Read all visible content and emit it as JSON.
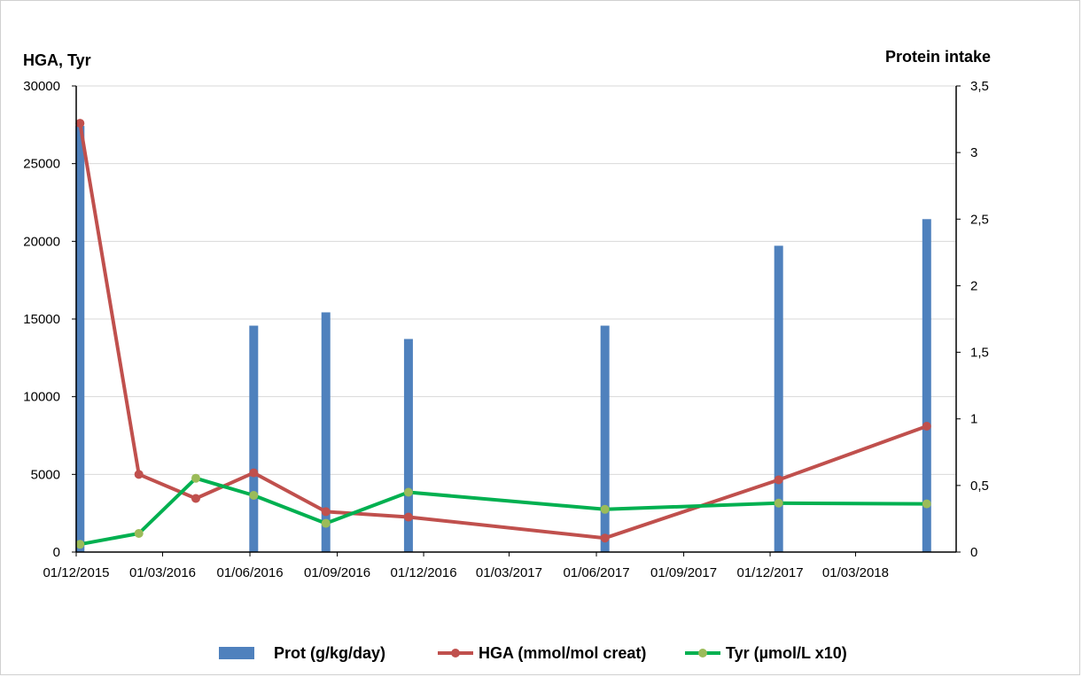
{
  "chart_data": {
    "type": "bar+line",
    "left_axis": {
      "label": "HGA, Tyr",
      "min": 0,
      "max": 30000,
      "ticks": [
        "0",
        "5000",
        "10000",
        "15000",
        "20000",
        "25000",
        "30000"
      ],
      "tick_values": [
        0,
        5000,
        10000,
        15000,
        20000,
        25000,
        30000
      ]
    },
    "right_axis": {
      "label": "Protein intake",
      "min": 0,
      "max": 3.5,
      "ticks": [
        "0",
        "0,5",
        "1",
        "1,5",
        "2",
        "2,5",
        "3",
        "3,5"
      ],
      "tick_values": [
        0,
        0.5,
        1,
        1.5,
        2,
        2.5,
        3,
        3.5
      ]
    },
    "x_axis": {
      "type": "date",
      "min": "2015-12-01",
      "max": "2018-06-15",
      "ticks": [
        "2015-12-01",
        "2016-03-01",
        "2016-06-01",
        "2016-09-01",
        "2016-12-01",
        "2017-03-01",
        "2017-06-01",
        "2017-09-01",
        "2017-12-01",
        "2018-03-01"
      ],
      "tick_labels": [
        "01/12/2015",
        "01/03/2016",
        "01/06/2016",
        "01/09/2016",
        "01/12/2016",
        "01/03/2017",
        "01/06/2017",
        "01/09/2017",
        "01/12/2017",
        "01/03/2018"
      ]
    },
    "grid": "horizontal",
    "legend_position": "bottom",
    "series": [
      {
        "name": "Prot (g/kg/day)",
        "type": "bar",
        "axis": "right",
        "color": "#4f81bd",
        "points": [
          {
            "x": "2015-12-05",
            "y": 3.2
          },
          {
            "x": "2016-06-05",
            "y": 1.7
          },
          {
            "x": "2016-08-20",
            "y": 1.8
          },
          {
            "x": "2016-11-15",
            "y": 1.6
          },
          {
            "x": "2017-06-10",
            "y": 1.7
          },
          {
            "x": "2017-12-10",
            "y": 2.3
          },
          {
            "x": "2018-05-15",
            "y": 2.5
          }
        ]
      },
      {
        "name": "HGA (mmol/mol creat)",
        "type": "line",
        "axis": "left",
        "color": "#c0504d",
        "points": [
          {
            "x": "2015-12-05",
            "y": 27600
          },
          {
            "x": "2016-02-05",
            "y": 5000
          },
          {
            "x": "2016-04-05",
            "y": 3450
          },
          {
            "x": "2016-06-05",
            "y": 5100
          },
          {
            "x": "2016-08-20",
            "y": 2600
          },
          {
            "x": "2016-11-15",
            "y": 2250
          },
          {
            "x": "2017-06-10",
            "y": 900
          },
          {
            "x": "2017-12-10",
            "y": 4650
          },
          {
            "x": "2018-05-15",
            "y": 8100
          }
        ]
      },
      {
        "name": "Tyr (µmol/L x10)",
        "type": "line",
        "axis": "left",
        "color": "#00b050",
        "marker_color": "#9bbb59",
        "points": [
          {
            "x": "2015-12-05",
            "y": 500
          },
          {
            "x": "2016-02-05",
            "y": 1200
          },
          {
            "x": "2016-04-05",
            "y": 4750
          },
          {
            "x": "2016-06-05",
            "y": 3650
          },
          {
            "x": "2016-08-20",
            "y": 1850
          },
          {
            "x": "2016-11-15",
            "y": 3850
          },
          {
            "x": "2017-06-10",
            "y": 2750
          },
          {
            "x": "2017-12-10",
            "y": 3150
          },
          {
            "x": "2018-05-15",
            "y": 3100
          }
        ]
      }
    ]
  }
}
